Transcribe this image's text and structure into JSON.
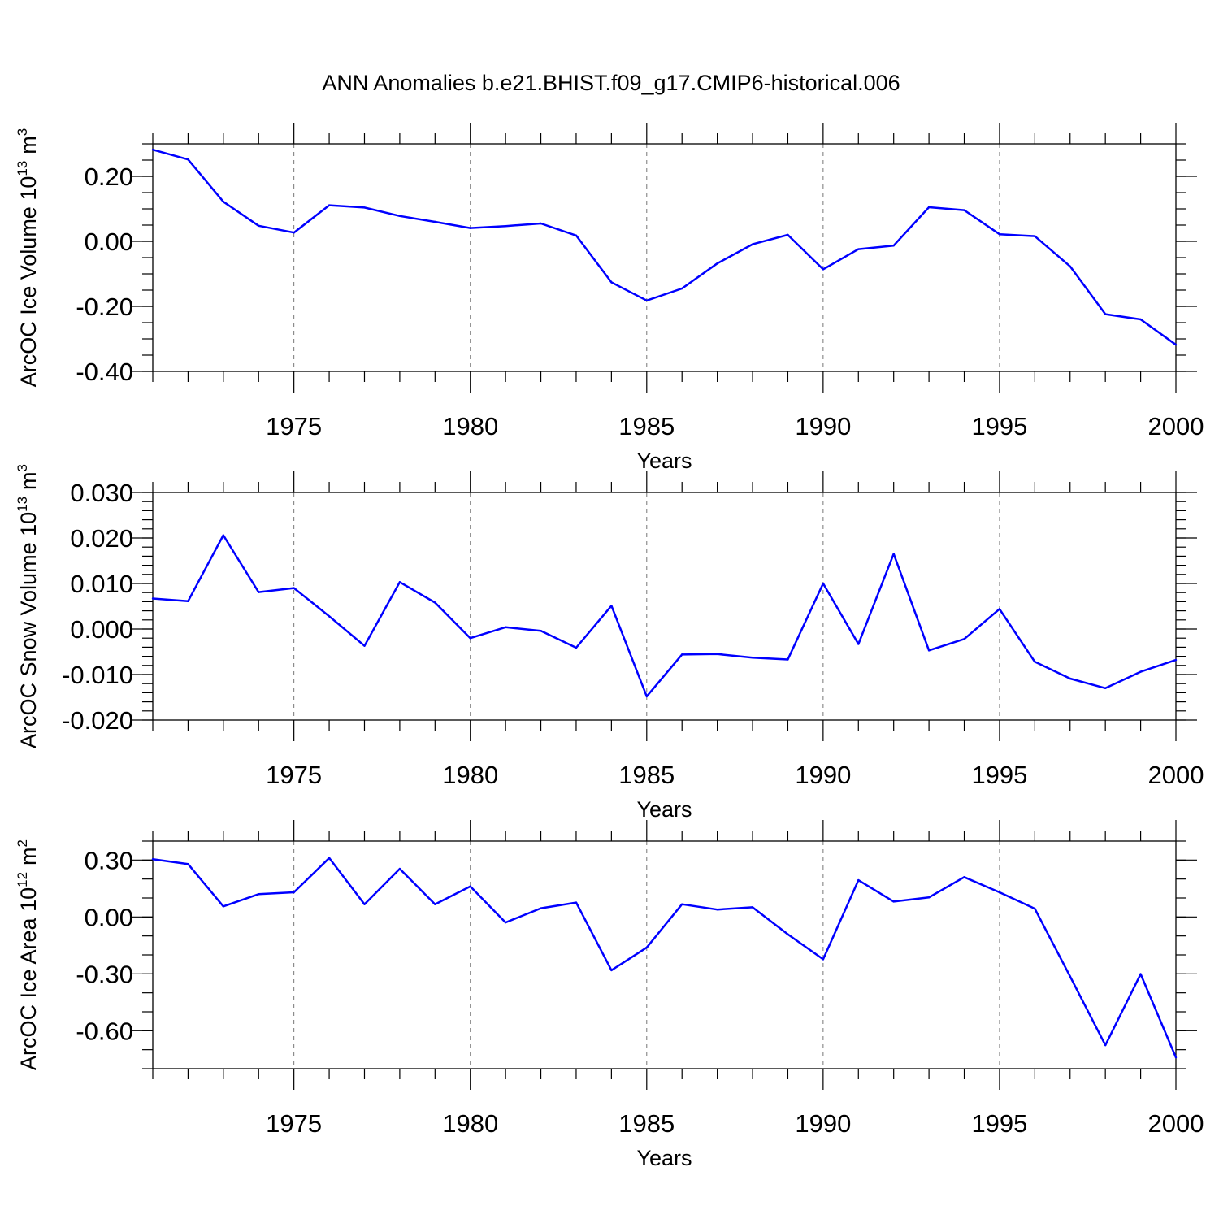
{
  "figure": {
    "title": "ANN Anomalies b.e21.BHIST.f09_g17.CMIP6-historical.006"
  },
  "colors": {
    "series": "#0000ff",
    "axis": "#000000",
    "grid": "#777777"
  },
  "chart_data": [
    {
      "type": "line",
      "title": "ANN Anomalies b.e21.BHIST.f09_g17.CMIP6-historical.006",
      "ylabel": "ArcOC Ice Volume 10",
      "ylabel_exp": "13",
      "ylabel_unit": "m",
      "ylabel_unit_exp": "3",
      "xlabel": "Years",
      "xlim": [
        1971,
        2000
      ],
      "ylim": [
        -0.4,
        0.3
      ],
      "x_ticks": [
        1975,
        1980,
        1985,
        1990,
        1995,
        2000
      ],
      "x_tick_labels": [
        "1975",
        "1980",
        "1985",
        "1990",
        "1995",
        "2000"
      ],
      "y_ticks": [
        -0.4,
        -0.2,
        0.0,
        0.2
      ],
      "y_tick_labels": [
        "-0.40",
        "-0.20",
        "0.00",
        "0.20"
      ],
      "y_minor_step": 0.05,
      "grid": "vertical dashed at labeled years",
      "x": [
        1971,
        1972,
        1973,
        1974,
        1975,
        1976,
        1977,
        1978,
        1979,
        1980,
        1981,
        1982,
        1983,
        1984,
        1985,
        1986,
        1987,
        1988,
        1989,
        1990,
        1991,
        1992,
        1993,
        1994,
        1995,
        1996,
        1997,
        1998,
        1999,
        2000
      ],
      "y": [
        0.282,
        0.252,
        0.122,
        0.048,
        0.027,
        0.111,
        0.104,
        0.078,
        0.06,
        0.041,
        0.047,
        0.055,
        0.018,
        -0.126,
        -0.182,
        -0.145,
        -0.068,
        -0.009,
        0.02,
        -0.086,
        -0.024,
        -0.013,
        0.105,
        0.096,
        0.022,
        0.016,
        -0.077,
        -0.224,
        -0.24,
        -0.318
      ]
    },
    {
      "type": "line",
      "ylabel": "ArcOC Snow Volume 10",
      "ylabel_exp": "13",
      "ylabel_unit": "m",
      "ylabel_unit_exp": "3",
      "xlabel": "Years",
      "xlim": [
        1971,
        2000
      ],
      "ylim": [
        -0.02,
        0.03
      ],
      "x_ticks": [
        1975,
        1980,
        1985,
        1990,
        1995,
        2000
      ],
      "x_tick_labels": [
        "1975",
        "1980",
        "1985",
        "1990",
        "1995",
        "2000"
      ],
      "y_ticks": [
        -0.02,
        -0.01,
        0.0,
        0.01,
        0.02,
        0.03
      ],
      "y_tick_labels": [
        "-0.020",
        "-0.010",
        "0.000",
        "0.010",
        "0.020",
        "0.030"
      ],
      "y_minor_step": 0.002,
      "grid": "vertical dashed at labeled years",
      "x": [
        1971,
        1972,
        1973,
        1974,
        1975,
        1976,
        1977,
        1978,
        1979,
        1980,
        1981,
        1982,
        1983,
        1984,
        1985,
        1986,
        1987,
        1988,
        1989,
        1990,
        1991,
        1992,
        1993,
        1994,
        1995,
        1996,
        1997,
        1998,
        1999,
        2000
      ],
      "y": [
        0.0067,
        0.0061,
        0.0206,
        0.0081,
        0.009,
        0.0028,
        -0.0037,
        0.0103,
        0.0058,
        -0.002,
        0.0004,
        -0.0004,
        -0.0041,
        0.0051,
        -0.0148,
        -0.0056,
        -0.0055,
        -0.0063,
        -0.0067,
        0.01,
        -0.0033,
        0.0165,
        -0.0047,
        -0.0022,
        0.0044,
        -0.0072,
        -0.0109,
        -0.013,
        -0.0094,
        -0.0068
      ]
    },
    {
      "type": "line",
      "ylabel": "ArcOC Ice Area 10",
      "ylabel_exp": "12",
      "ylabel_unit": "m",
      "ylabel_unit_exp": "2",
      "xlabel": "Years",
      "xlim": [
        1971,
        2000
      ],
      "ylim": [
        -0.8,
        0.4
      ],
      "x_ticks": [
        1975,
        1980,
        1985,
        1990,
        1995,
        2000
      ],
      "x_tick_labels": [
        "1975",
        "1980",
        "1985",
        "1990",
        "1995",
        "2000"
      ],
      "y_ticks": [
        -0.6,
        -0.3,
        0.0,
        0.3
      ],
      "y_tick_labels": [
        "-0.60",
        "-0.30",
        "0.00",
        "0.30"
      ],
      "y_minor_step": 0.1,
      "grid": "vertical dashed at labeled years",
      "x": [
        1971,
        1972,
        1973,
        1974,
        1975,
        1976,
        1977,
        1978,
        1979,
        1980,
        1981,
        1982,
        1983,
        1984,
        1985,
        1986,
        1987,
        1988,
        1989,
        1990,
        1991,
        1992,
        1993,
        1994,
        1995,
        1996,
        1997,
        1998,
        1999,
        2000
      ],
      "y": [
        0.305,
        0.279,
        0.056,
        0.12,
        0.13,
        0.311,
        0.067,
        0.254,
        0.067,
        0.161,
        -0.029,
        0.046,
        0.076,
        -0.281,
        -0.161,
        0.067,
        0.039,
        0.051,
        -0.091,
        -0.223,
        0.194,
        0.081,
        0.103,
        0.21,
        0.13,
        0.044,
        -0.314,
        -0.676,
        -0.301,
        -0.741
      ]
    }
  ]
}
